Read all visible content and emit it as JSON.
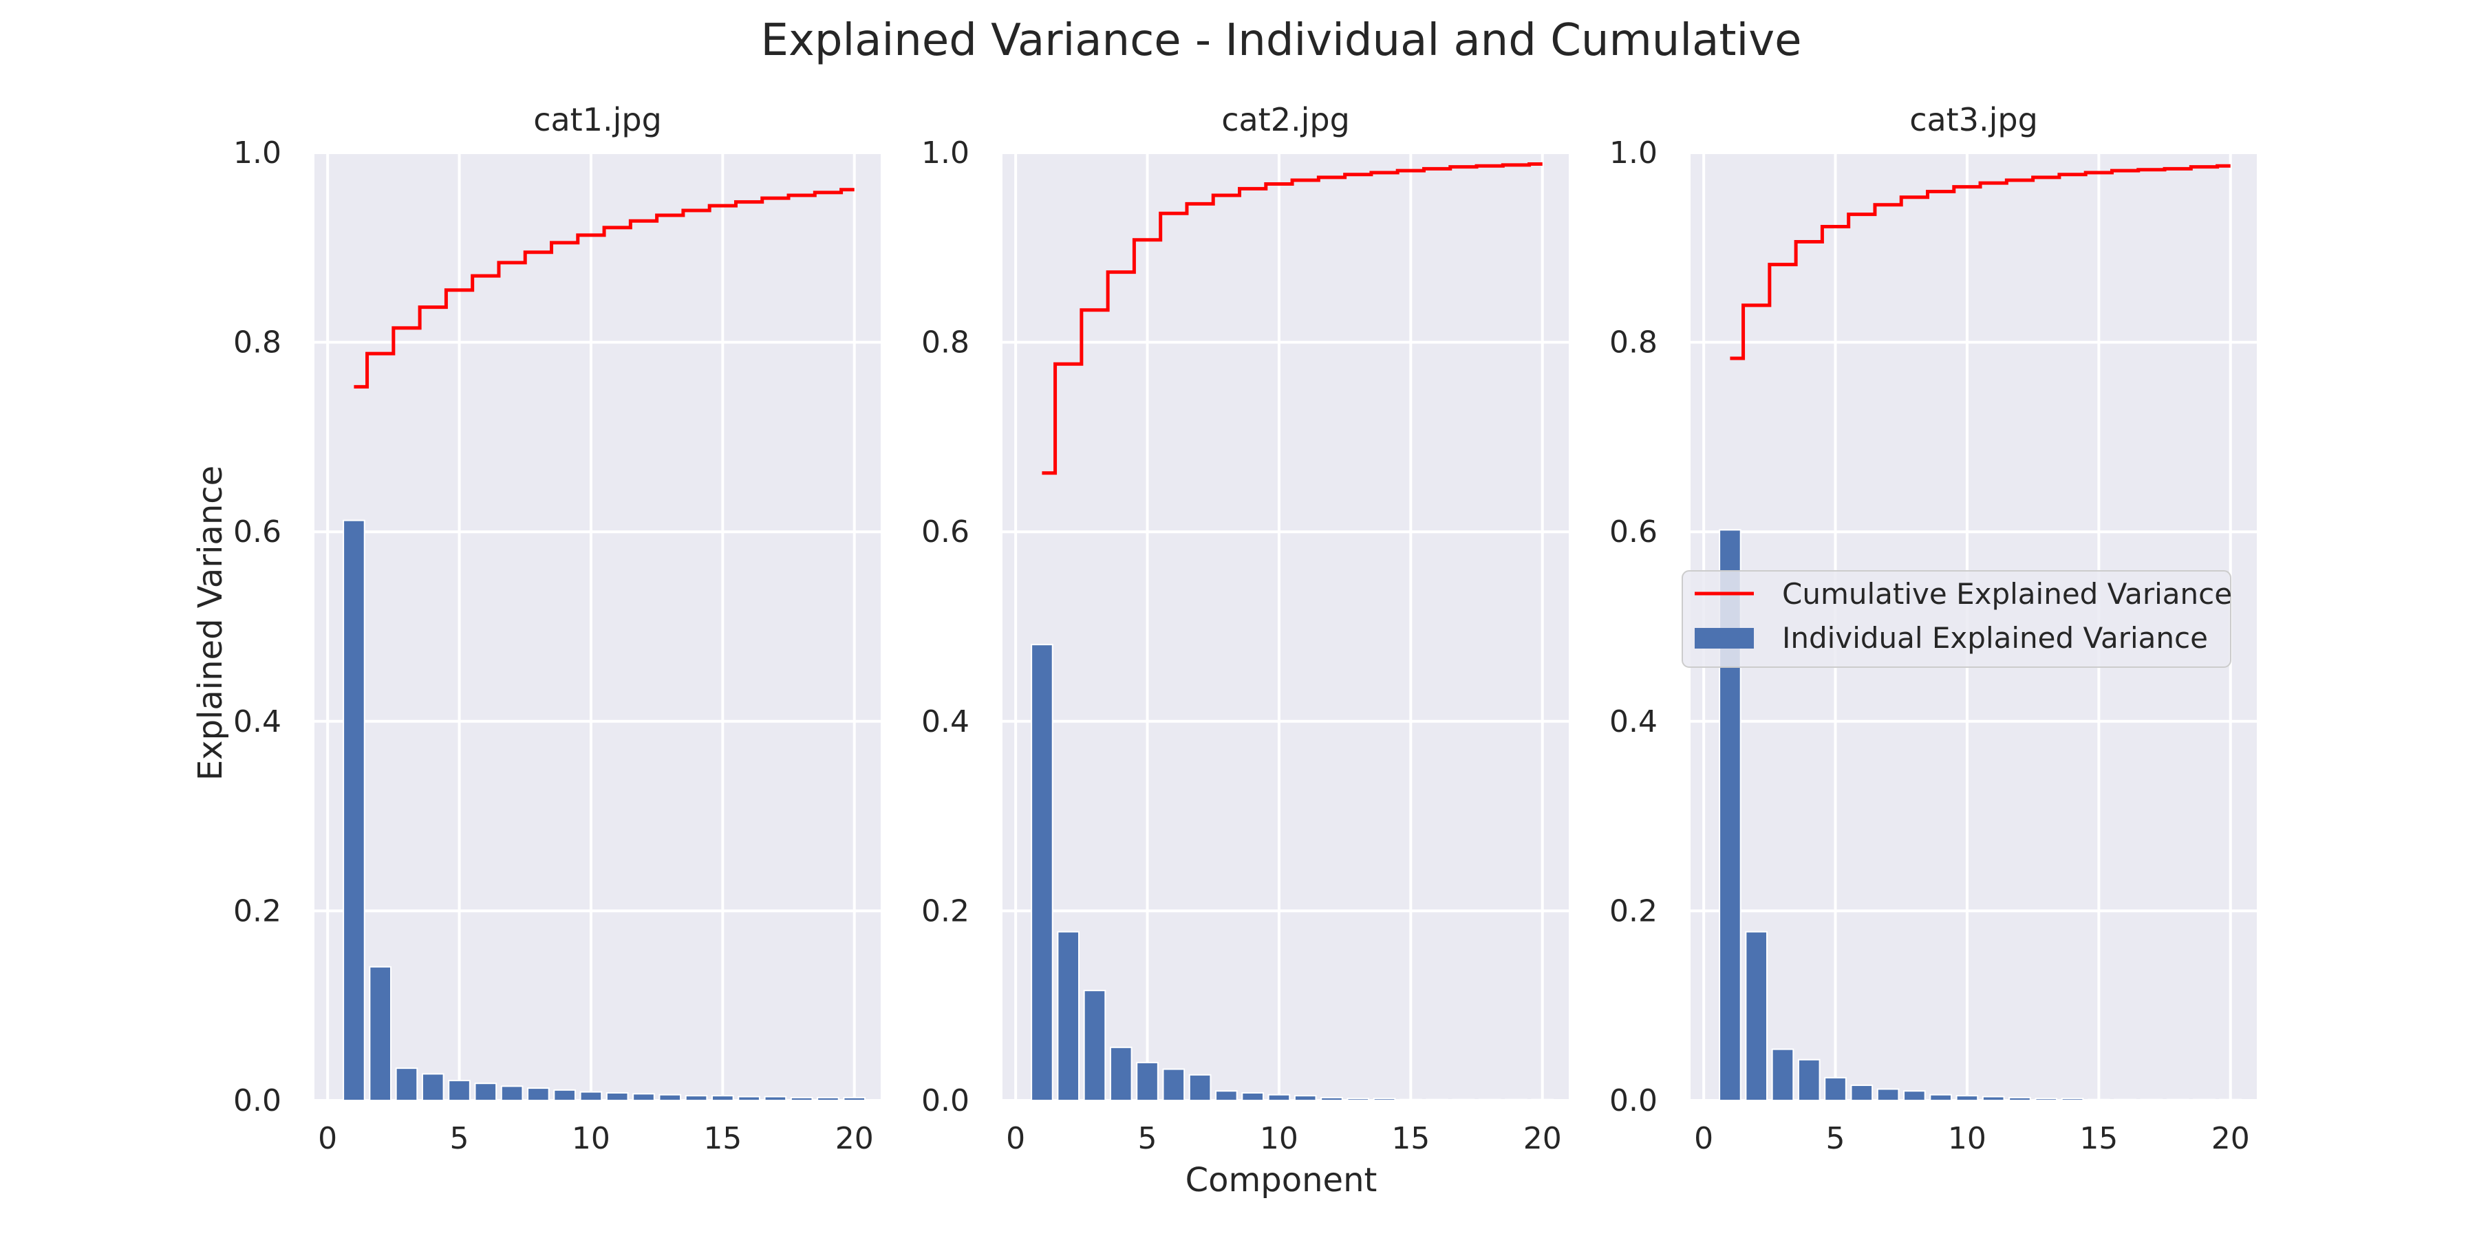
{
  "figure": {
    "title": "Explained Variance - Individual and Cumulative",
    "xlabel": "Component",
    "ylabel": "Explained Variance",
    "legend": {
      "cumulative_label": "Cumulative Explained Variance",
      "individual_label": "Individual Explained Variance"
    }
  },
  "colors": {
    "background": "#eaeaf2",
    "grid": "#ffffff",
    "bar": "#4c72b0",
    "line": "#ff0000"
  },
  "chart_data": [
    {
      "type": "bar",
      "title": "cat1.jpg",
      "xlim": [
        -0.5,
        21
      ],
      "ylim": [
        0,
        1
      ],
      "xticks": [
        0,
        5,
        10,
        15,
        20
      ],
      "yticks": [
        "0.0",
        "0.2",
        "0.4",
        "0.6",
        "0.8",
        "1.0"
      ],
      "grid": true,
      "series": [
        {
          "name": "Individual Explained Variance",
          "type": "bar",
          "x": [
            1,
            2,
            3,
            4,
            5,
            6,
            7,
            8,
            9,
            10,
            11,
            12,
            13,
            14,
            15,
            16,
            17,
            18,
            19,
            20
          ],
          "values": [
            0.612,
            0.141,
            0.034,
            0.028,
            0.021,
            0.018,
            0.015,
            0.013,
            0.011,
            0.009,
            0.008,
            0.007,
            0.006,
            0.005,
            0.005,
            0.004,
            0.004,
            0.003,
            0.003,
            0.003
          ]
        },
        {
          "name": "Cumulative Explained Variance",
          "type": "step",
          "x": [
            1,
            2,
            3,
            4,
            5,
            6,
            7,
            8,
            9,
            10,
            11,
            12,
            13,
            14,
            15,
            16,
            17,
            18,
            19,
            20
          ],
          "values": [
            0.753,
            0.788,
            0.815,
            0.837,
            0.855,
            0.87,
            0.884,
            0.895,
            0.905,
            0.913,
            0.921,
            0.928,
            0.934,
            0.939,
            0.944,
            0.948,
            0.952,
            0.955,
            0.958,
            0.961
          ]
        }
      ]
    },
    {
      "type": "bar",
      "title": "cat2.jpg",
      "xlim": [
        -0.5,
        21
      ],
      "ylim": [
        0,
        1
      ],
      "xticks": [
        0,
        5,
        10,
        15,
        20
      ],
      "yticks": [
        "0.0",
        "0.2",
        "0.4",
        "0.6",
        "0.8",
        "1.0"
      ],
      "grid": true,
      "series": [
        {
          "name": "Individual Explained Variance",
          "type": "bar",
          "x": [
            1,
            2,
            3,
            4,
            5,
            6,
            7,
            8,
            9,
            10,
            11,
            12,
            13,
            14,
            15,
            16,
            17,
            18,
            19,
            20
          ],
          "values": [
            0.481,
            0.178,
            0.116,
            0.056,
            0.04,
            0.033,
            0.027,
            0.01,
            0.008,
            0.006,
            0.005,
            0.003,
            0.002,
            0.002,
            0.001,
            0.001,
            0.001,
            0.001,
            0.001,
            0.001
          ]
        },
        {
          "name": "Cumulative Explained Variance",
          "type": "step",
          "x": [
            1,
            2,
            3,
            4,
            5,
            6,
            7,
            8,
            9,
            10,
            11,
            12,
            13,
            14,
            15,
            16,
            17,
            18,
            19,
            20
          ],
          "values": [
            0.662,
            0.777,
            0.834,
            0.874,
            0.908,
            0.936,
            0.946,
            0.955,
            0.962,
            0.967,
            0.971,
            0.974,
            0.977,
            0.979,
            0.981,
            0.983,
            0.985,
            0.986,
            0.987,
            0.988
          ]
        }
      ]
    },
    {
      "type": "bar",
      "title": "cat3.jpg",
      "xlim": [
        -0.5,
        21
      ],
      "ylim": [
        0,
        1
      ],
      "xticks": [
        0,
        5,
        10,
        15,
        20
      ],
      "yticks": [
        "0.0",
        "0.2",
        "0.4",
        "0.6",
        "0.8",
        "1.0"
      ],
      "grid": true,
      "legend": "center-right",
      "series": [
        {
          "name": "Individual Explained Variance",
          "type": "bar",
          "x": [
            1,
            2,
            3,
            4,
            5,
            6,
            7,
            8,
            9,
            10,
            11,
            12,
            13,
            14,
            15,
            16,
            17,
            18,
            19,
            20
          ],
          "values": [
            0.602,
            0.178,
            0.054,
            0.043,
            0.024,
            0.016,
            0.012,
            0.01,
            0.006,
            0.005,
            0.004,
            0.003,
            0.002,
            0.002,
            0.001,
            0.001,
            0.001,
            0.001,
            0.001,
            0.001
          ]
        },
        {
          "name": "Cumulative Explained Variance",
          "type": "step",
          "x": [
            1,
            2,
            3,
            4,
            5,
            6,
            7,
            8,
            9,
            10,
            11,
            12,
            13,
            14,
            15,
            16,
            17,
            18,
            19,
            20
          ],
          "values": [
            0.783,
            0.839,
            0.882,
            0.906,
            0.922,
            0.935,
            0.945,
            0.953,
            0.959,
            0.964,
            0.968,
            0.971,
            0.974,
            0.977,
            0.979,
            0.981,
            0.982,
            0.983,
            0.985,
            0.986
          ]
        }
      ]
    }
  ]
}
